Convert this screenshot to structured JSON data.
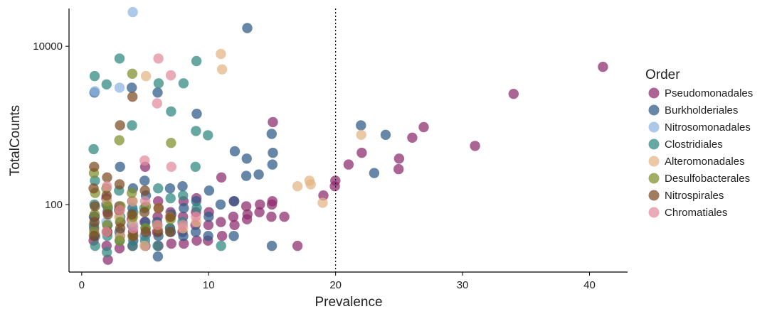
{
  "chart_data": {
    "type": "scatter",
    "xlabel": "Prevalence",
    "ylabel": "TotalCounts",
    "x_scale": "linear",
    "y_scale": "log10",
    "xlim": [
      -1,
      43
    ],
    "ylim": [
      14,
      30000
    ],
    "x_ticks": [
      0,
      10,
      20,
      30,
      40
    ],
    "y_ticks": [
      100,
      10000
    ],
    "x_tick_labels": [
      "0",
      "10",
      "20",
      "30",
      "40"
    ],
    "y_tick_labels": [
      "100",
      "10000"
    ],
    "vline": 20,
    "grid": false,
    "legend": {
      "title": "Order",
      "position": "right"
    },
    "point_opacity": 0.72,
    "series": [
      {
        "name": "Pseudomonadales",
        "color": "#8b2a6b",
        "points": [
          [
            1,
            35
          ],
          [
            1,
            50
          ],
          [
            1,
            70
          ],
          [
            2,
            20
          ],
          [
            2,
            30
          ],
          [
            2,
            45
          ],
          [
            2,
            80
          ],
          [
            2,
            120
          ],
          [
            3,
            28
          ],
          [
            3,
            40
          ],
          [
            3,
            60
          ],
          [
            3,
            95
          ],
          [
            4,
            30
          ],
          [
            4,
            45
          ],
          [
            4,
            65
          ],
          [
            4,
            110
          ],
          [
            5,
            30
          ],
          [
            5,
            42
          ],
          [
            5,
            60
          ],
          [
            5,
            300
          ],
          [
            6,
            30
          ],
          [
            6,
            45
          ],
          [
            6,
            70
          ],
          [
            6,
            110
          ],
          [
            7,
            32
          ],
          [
            7,
            50
          ],
          [
            7,
            80
          ],
          [
            8,
            32
          ],
          [
            8,
            45
          ],
          [
            8,
            70
          ],
          [
            8,
            110
          ],
          [
            9,
            35
          ],
          [
            9,
            55
          ],
          [
            9,
            80
          ],
          [
            9,
            120
          ],
          [
            10,
            35
          ],
          [
            10,
            55
          ],
          [
            10,
            80
          ],
          [
            11,
            40
          ],
          [
            11,
            60
          ],
          [
            11,
            220
          ],
          [
            12,
            55
          ],
          [
            12,
            70
          ],
          [
            12,
            110
          ],
          [
            13,
            65
          ],
          [
            13,
            75
          ],
          [
            13,
            95
          ],
          [
            14,
            80
          ],
          [
            14,
            100
          ],
          [
            15,
            70
          ],
          [
            15,
            100
          ],
          [
            15,
            110
          ],
          [
            15,
            1100
          ],
          [
            16,
            70
          ],
          [
            17,
            30
          ],
          [
            19,
            130
          ],
          [
            20,
            170
          ],
          [
            20,
            200
          ],
          [
            21,
            320
          ],
          [
            22,
            450
          ],
          [
            25,
            280
          ],
          [
            25,
            380
          ],
          [
            26,
            700
          ],
          [
            27,
            950
          ],
          [
            31,
            550
          ],
          [
            34,
            2500
          ],
          [
            41,
            5500
          ]
        ]
      },
      {
        "name": "Burkholderiales",
        "color": "#2c5987",
        "points": [
          [
            1,
            40
          ],
          [
            1,
            70
          ],
          [
            1,
            2600
          ],
          [
            2,
            55
          ],
          [
            2,
            100
          ],
          [
            3,
            45
          ],
          [
            3,
            300
          ],
          [
            4,
            35
          ],
          [
            4,
            55
          ],
          [
            4,
            90
          ],
          [
            4,
            160
          ],
          [
            4,
            3000
          ],
          [
            5,
            40
          ],
          [
            5,
            60
          ],
          [
            5,
            130
          ],
          [
            5,
            200
          ],
          [
            6,
            22
          ],
          [
            6,
            40
          ],
          [
            6,
            60
          ],
          [
            6,
            2600
          ],
          [
            7,
            45
          ],
          [
            7,
            75
          ],
          [
            7,
            160
          ],
          [
            8,
            40
          ],
          [
            8,
            90
          ],
          [
            8,
            170
          ],
          [
            9,
            45
          ],
          [
            9,
            110
          ],
          [
            9,
            1400
          ],
          [
            10,
            40
          ],
          [
            10,
            70
          ],
          [
            10,
            150
          ],
          [
            11,
            100
          ],
          [
            12,
            40
          ],
          [
            12,
            110
          ],
          [
            12,
            470
          ],
          [
            13,
            230
          ],
          [
            13,
            380
          ],
          [
            13,
            17000
          ],
          [
            14,
            240
          ],
          [
            15,
            30
          ],
          [
            15,
            320
          ],
          [
            15,
            450
          ],
          [
            15,
            780
          ],
          [
            22,
            1000
          ],
          [
            23,
            250
          ],
          [
            24,
            760
          ]
        ]
      },
      {
        "name": "Nitrosomonadales",
        "color": "#8db4e2",
        "points": [
          [
            1,
            2700
          ],
          [
            2,
            60
          ],
          [
            3,
            3000
          ],
          [
            4,
            27000
          ],
          [
            4,
            55
          ],
          [
            5,
            40
          ]
        ]
      },
      {
        "name": "Clostridiales",
        "color": "#2e8680",
        "points": [
          [
            1,
            4200
          ],
          [
            1,
            30
          ],
          [
            1,
            55
          ],
          [
            1,
            100
          ],
          [
            1,
            200
          ],
          [
            1,
            500
          ],
          [
            2,
            25
          ],
          [
            2,
            40
          ],
          [
            2,
            90
          ],
          [
            2,
            3300
          ],
          [
            3,
            35
          ],
          [
            3,
            70
          ],
          [
            3,
            150
          ],
          [
            3,
            7000
          ],
          [
            4,
            30
          ],
          [
            4,
            80
          ],
          [
            4,
            1000
          ],
          [
            5,
            35
          ],
          [
            5,
            50
          ],
          [
            5,
            90
          ],
          [
            6,
            30
          ],
          [
            6,
            160
          ],
          [
            6,
            3400
          ],
          [
            7,
            50
          ],
          [
            7,
            120
          ],
          [
            7,
            1500
          ],
          [
            8,
            60
          ],
          [
            8,
            130
          ],
          [
            8,
            3400
          ],
          [
            9,
            90
          ],
          [
            9,
            300
          ],
          [
            9,
            850
          ],
          [
            9,
            6500
          ],
          [
            10,
            750
          ],
          [
            11,
            30
          ]
        ]
      },
      {
        "name": "Alteromonadales",
        "color": "#e4b484",
        "points": [
          [
            2,
            110
          ],
          [
            3,
            40
          ],
          [
            3,
            70
          ],
          [
            4,
            60
          ],
          [
            4,
            110
          ],
          [
            5,
            4200
          ],
          [
            5,
            30
          ],
          [
            6,
            50
          ],
          [
            6,
            90
          ],
          [
            7,
            70
          ],
          [
            8,
            50
          ],
          [
            9,
            60
          ],
          [
            11,
            5100
          ],
          [
            11,
            8000
          ],
          [
            17,
            170
          ],
          [
            18,
            180
          ],
          [
            18,
            200
          ],
          [
            19,
            105
          ],
          [
            22,
            760
          ]
        ]
      },
      {
        "name": "Desulfobacterales",
        "color": "#7e8e2a",
        "points": [
          [
            1,
            45
          ],
          [
            1,
            75
          ],
          [
            1,
            140
          ],
          [
            1,
            250
          ],
          [
            2,
            55
          ],
          [
            2,
            95
          ],
          [
            2,
            160
          ],
          [
            3,
            35
          ],
          [
            3,
            60
          ],
          [
            3,
            95
          ],
          [
            3,
            650
          ],
          [
            4,
            40
          ],
          [
            4,
            70
          ],
          [
            4,
            140
          ],
          [
            4,
            4500
          ],
          [
            5,
            50
          ],
          [
            5,
            95
          ],
          [
            6,
            55
          ],
          [
            7,
            65
          ],
          [
            7,
            600
          ]
        ]
      },
      {
        "name": "Nitrospirales",
        "color": "#7b4a22",
        "points": [
          [
            1,
            40
          ],
          [
            1,
            60
          ],
          [
            1,
            95
          ],
          [
            1,
            160
          ],
          [
            1,
            300
          ],
          [
            2,
            45
          ],
          [
            2,
            75
          ],
          [
            2,
            130
          ],
          [
            2,
            220
          ],
          [
            3,
            50
          ],
          [
            3,
            85
          ],
          [
            3,
            180
          ],
          [
            3,
            1000
          ],
          [
            4,
            40
          ],
          [
            4,
            75
          ],
          [
            4,
            2300
          ],
          [
            5,
            45
          ],
          [
            5,
            80
          ],
          [
            5,
            150
          ],
          [
            6,
            45
          ],
          [
            6,
            90
          ],
          [
            7,
            45
          ],
          [
            7,
            70
          ]
        ]
      },
      {
        "name": "Chromatiales",
        "color": "#e28a9c",
        "points": [
          [
            2,
            45
          ],
          [
            2,
            170
          ],
          [
            3,
            85
          ],
          [
            4,
            50
          ],
          [
            5,
            360
          ],
          [
            5,
            110
          ],
          [
            6,
            7000
          ],
          [
            6,
            1900
          ],
          [
            6,
            55
          ],
          [
            7,
            4300
          ],
          [
            7,
            300
          ],
          [
            8,
            55
          ],
          [
            9,
            70
          ]
        ]
      }
    ]
  }
}
